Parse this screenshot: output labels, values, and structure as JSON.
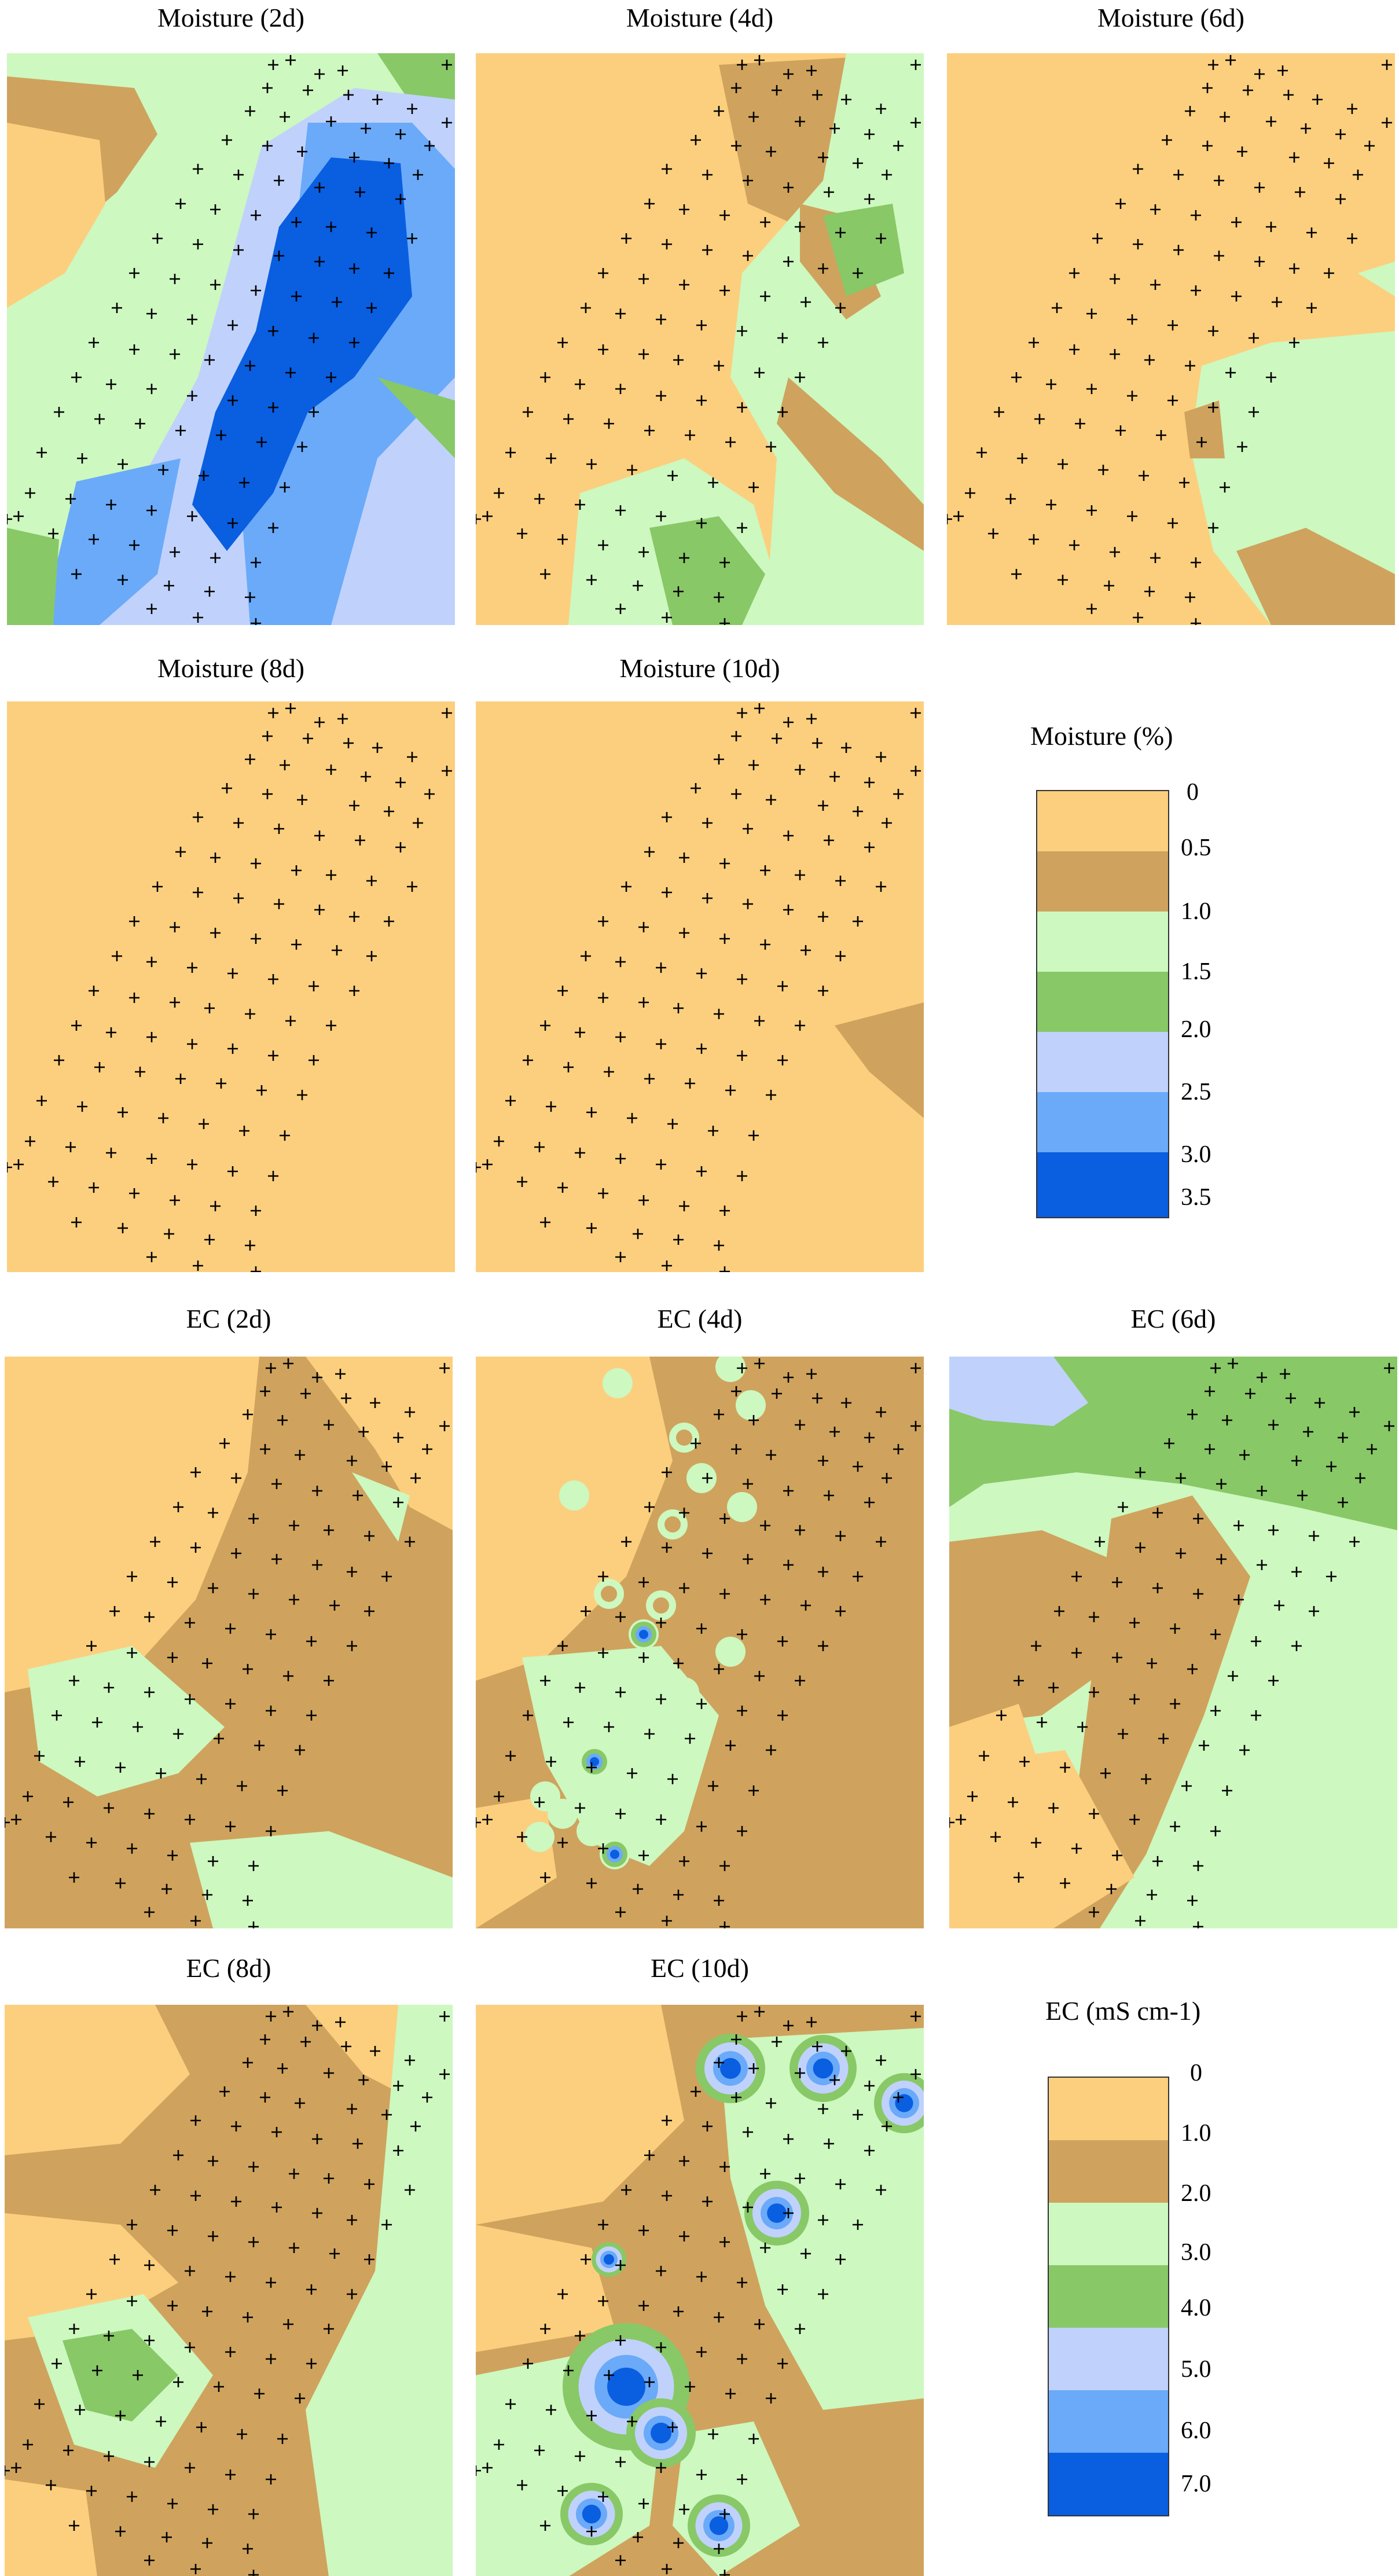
{
  "colors": {
    "c0": "#fccf7e",
    "c1": "#cfa35d",
    "c2": "#cdf8c0",
    "c3": "#88c867",
    "c4": "#c0d2fb",
    "c5": "#6aaaf9",
    "c6": "#0a5ee0",
    "marker": "#000000"
  },
  "panels": [
    {
      "id": "m2",
      "title": "Moisture (2d)"
    },
    {
      "id": "m4",
      "title": "Moisture (4d)"
    },
    {
      "id": "m6",
      "title": "Moisture (6d)"
    },
    {
      "id": "m8",
      "title": "Moisture (8d)"
    },
    {
      "id": "m10",
      "title": "Moisture (10d)"
    },
    {
      "id": "e2",
      "title": "EC (2d)"
    },
    {
      "id": "e4",
      "title": "EC (4d)"
    },
    {
      "id": "e6",
      "title": "EC (6d)"
    },
    {
      "id": "e8",
      "title": "EC (8d)"
    },
    {
      "id": "e10",
      "title": "EC (10d)"
    }
  ],
  "legend_moisture": {
    "title": "Moisture (%)",
    "labels": [
      "0",
      "0.5",
      "1.0",
      "1.5",
      "2.0",
      "2.5",
      "3.0",
      "3.5"
    ]
  },
  "legend_ec": {
    "title": "EC (mS cm-1)",
    "labels": [
      "0",
      "1.0",
      "2.0",
      "3.0",
      "4.0",
      "5.0",
      "6.0",
      "7.0"
    ]
  }
}
